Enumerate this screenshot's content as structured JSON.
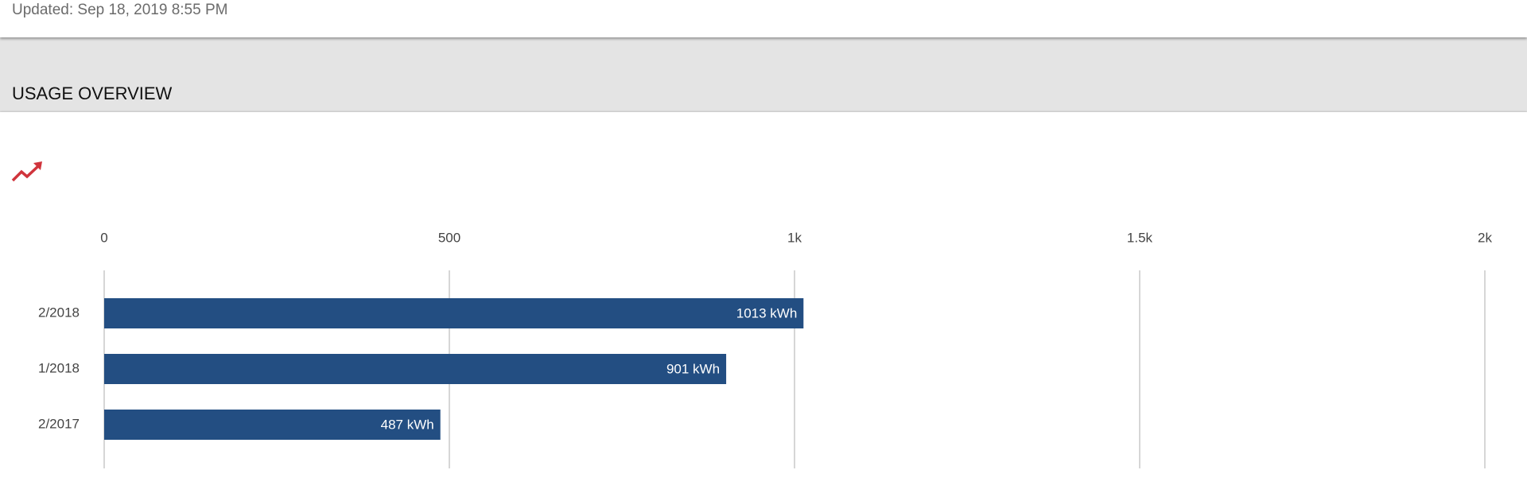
{
  "header": {
    "updated": "Updated: Sep 18, 2019 8:55 PM"
  },
  "section_title": "USAGE OVERVIEW",
  "chart_data": {
    "type": "bar",
    "orientation": "horizontal",
    "categories": [
      "2/2018",
      "1/2018",
      "2/2017"
    ],
    "values": [
      1013,
      901,
      487
    ],
    "value_labels": [
      "1013 kWh",
      "901 kWh",
      "487 kWh"
    ],
    "color": "#234e82",
    "xlim": [
      0,
      2000
    ],
    "xticks": [
      0,
      500,
      {
        "value": 1000,
        "label": "1k"
      },
      {
        "value": 1500,
        "label": "1.5k"
      },
      {
        "value": 2000,
        "label": "2k"
      }
    ],
    "grid": true
  }
}
